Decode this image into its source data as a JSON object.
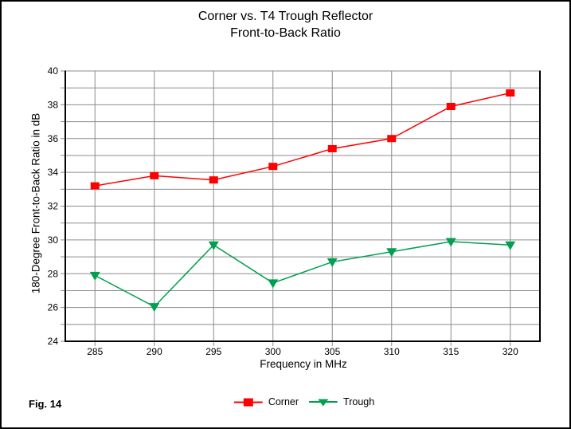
{
  "figure_label": "Fig. 14",
  "chart_data": {
    "type": "line",
    "title": "Corner vs. T4 Trough Reflector",
    "subtitle": "Front-to-Back Ratio",
    "xlabel": "Frequency in MHz",
    "ylabel": "180-Degree Front-to-Back Ratio in dB",
    "x": [
      285,
      290,
      295,
      300,
      305,
      310,
      315,
      320
    ],
    "x_ticks": [
      285,
      290,
      295,
      300,
      305,
      310,
      315,
      320
    ],
    "xlim": [
      282.5,
      322.5
    ],
    "ylim": [
      24,
      40
    ],
    "y_tick_labels": [
      24,
      26,
      28,
      30,
      32,
      34,
      36,
      38,
      40
    ],
    "y_minor_step": 1,
    "grid": true,
    "legend_position": "bottom-center",
    "colors": {
      "grid": "#8c8c8c",
      "axis": "#000000",
      "background": "#ffffff"
    },
    "series": [
      {
        "name": "Corner",
        "color": "#ff0000",
        "marker": "square",
        "values": [
          33.2,
          33.8,
          33.55,
          34.35,
          35.4,
          36.0,
          37.9,
          38.7
        ]
      },
      {
        "name": "Trough",
        "color": "#00a050",
        "marker": "triangle-down",
        "values": [
          27.9,
          26.05,
          29.7,
          27.45,
          28.7,
          29.3,
          29.9,
          29.7
        ]
      }
    ]
  }
}
